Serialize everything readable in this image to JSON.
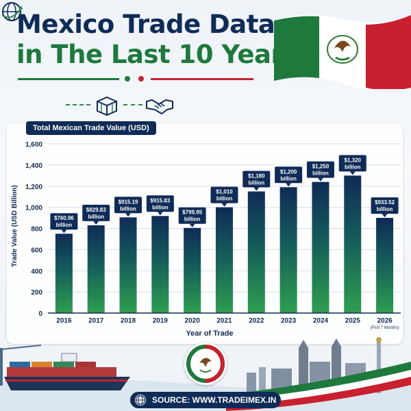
{
  "title": {
    "line1": "Mexico Trade Data",
    "line2": "in The Last 10 Years"
  },
  "chart_label": "Total Mexican Trade Value (USD)",
  "source": "SOURCE: WWW.TRADEIMEX.IN",
  "colors": {
    "navy": "#0f2b57",
    "green": "#1e7a3c",
    "red": "#c8202f",
    "bar_top": "#0f2b57",
    "bar_bottom": "#2e9e4f"
  },
  "icons": [
    "globe-icon",
    "container-icon",
    "handshake-icon",
    "mexico-flag",
    "mexico-seal",
    "cargo-ship",
    "city-skyline",
    "globe-small-icon"
  ],
  "chart_data": {
    "type": "bar",
    "categories": [
      "2016",
      "2017",
      "2018",
      "2019",
      "2020",
      "2021",
      "2022",
      "2023",
      "2024",
      "2025",
      "2026"
    ],
    "category_notes": [
      "",
      "",
      "",
      "",
      "",
      "",
      "",
      "",
      "",
      "",
      "(First 7 Months)"
    ],
    "values": [
      760.96,
      829.83,
      915.19,
      915.83,
      799.95,
      1010,
      1180,
      1200,
      1250,
      1320,
      933.52
    ],
    "bar_values": [
      750,
      830,
      905,
      918,
      805,
      1000,
      1150,
      1190,
      1240,
      1300,
      900
    ],
    "data_labels": [
      [
        "$760.96",
        "billion"
      ],
      [
        "$829.83",
        "billion"
      ],
      [
        "$915.19",
        "billion"
      ],
      [
        "$915.83",
        "billion"
      ],
      [
        "$799.95",
        "billion"
      ],
      [
        "$1,010",
        "billion"
      ],
      [
        "$1,180",
        "billion"
      ],
      [
        "$1,200",
        "billion"
      ],
      [
        "$1,250",
        "billion"
      ],
      [
        "$1,320",
        "billion"
      ],
      [
        "$933.52",
        "billion"
      ]
    ],
    "title": "",
    "xlabel": "Year of Trade",
    "ylabel": "Trade Value (USD Billion)",
    "ylim": [
      0,
      1600
    ],
    "yticks": [
      0,
      200,
      400,
      600,
      800,
      1000,
      1200,
      1400,
      1600
    ],
    "ytick_labels": [
      "0",
      "200",
      "400",
      "600",
      "800",
      "1,000",
      "1,200",
      "1,400",
      "1,600"
    ],
    "grid": true,
    "legend": "none"
  }
}
